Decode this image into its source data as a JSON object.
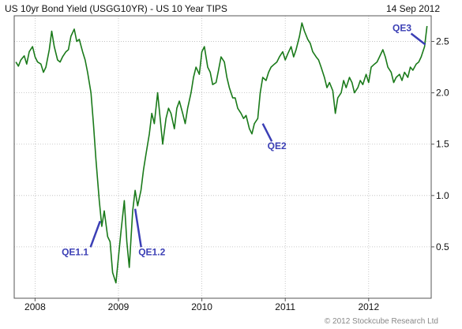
{
  "header": {
    "title": "US 10yr Bond Yield (USGG10YR) - US 10 Year TIPS",
    "date": "14 Sep 2012"
  },
  "footer": {
    "copyright": "© 2012 Stockcube Research Ltd"
  },
  "colors": {
    "line": "#1a7a1a",
    "grid": "#bbbbbb",
    "annotation": "#3b3fb5",
    "frame": "#555555"
  },
  "chart_data": {
    "type": "line",
    "title": "US 10yr Bond Yield (USGG10YR) - US 10 Year TIPS",
    "xlabel": "",
    "ylabel": "",
    "xlim": [
      2007.75,
      2012.75
    ],
    "ylim": [
      0,
      2.75
    ],
    "y_ticks": [
      0.5,
      1.0,
      1.5,
      2.0,
      2.5
    ],
    "y_tick_labels": [
      "0.5",
      "1.0",
      "1.5",
      "2.0",
      "2.5"
    ],
    "x_ticks": [
      2008,
      2009,
      2010,
      2011,
      2012
    ],
    "x_tick_labels": [
      "2008",
      "2009",
      "2010",
      "2011",
      "2012"
    ],
    "grid": true,
    "y_axis_side": "right",
    "series": [
      {
        "x": [
          2007.77,
          2007.8,
          2007.83,
          2007.87,
          2007.9,
          2007.93,
          2007.97,
          2008.0,
          2008.03,
          2008.07,
          2008.1,
          2008.13,
          2008.17,
          2008.2,
          2008.23,
          2008.27,
          2008.3,
          2008.33,
          2008.37,
          2008.4,
          2008.43,
          2008.47,
          2008.5,
          2008.53,
          2008.57,
          2008.6,
          2008.63,
          2008.67,
          2008.7,
          2008.73,
          2008.77,
          2008.8,
          2008.83,
          2008.87,
          2008.9,
          2008.93,
          2008.97,
          2009.0,
          2009.03,
          2009.07,
          2009.1,
          2009.13,
          2009.17,
          2009.2,
          2009.23,
          2009.27,
          2009.3,
          2009.33,
          2009.37,
          2009.4,
          2009.43,
          2009.47,
          2009.5,
          2009.53,
          2009.57,
          2009.6,
          2009.63,
          2009.67,
          2009.7,
          2009.73,
          2009.77,
          2009.8,
          2009.83,
          2009.87,
          2009.9,
          2009.93,
          2009.97,
          2010.0,
          2010.03,
          2010.07,
          2010.1,
          2010.13,
          2010.17,
          2010.2,
          2010.23,
          2010.27,
          2010.3,
          2010.33,
          2010.37,
          2010.4,
          2010.43,
          2010.47,
          2010.5,
          2010.53,
          2010.57,
          2010.6,
          2010.63,
          2010.67,
          2010.7,
          2010.73,
          2010.77,
          2010.8,
          2010.83,
          2010.87,
          2010.9,
          2010.93,
          2010.97,
          2011.0,
          2011.03,
          2011.07,
          2011.1,
          2011.13,
          2011.17,
          2011.2,
          2011.23,
          2011.27,
          2011.3,
          2011.33,
          2011.37,
          2011.4,
          2011.43,
          2011.47,
          2011.5,
          2011.53,
          2011.57,
          2011.6,
          2011.63,
          2011.67,
          2011.7,
          2011.73,
          2011.77,
          2011.8,
          2011.83,
          2011.87,
          2011.9,
          2011.93,
          2011.97,
          2012.0,
          2012.03,
          2012.07,
          2012.1,
          2012.13,
          2012.17,
          2012.2,
          2012.23,
          2012.27,
          2012.3,
          2012.33,
          2012.37,
          2012.4,
          2012.43,
          2012.47,
          2012.5,
          2012.53,
          2012.57,
          2012.6,
          2012.63,
          2012.67,
          2012.7
        ],
        "values": [
          2.3,
          2.26,
          2.32,
          2.36,
          2.28,
          2.4,
          2.45,
          2.35,
          2.3,
          2.28,
          2.2,
          2.25,
          2.42,
          2.6,
          2.45,
          2.32,
          2.3,
          2.35,
          2.4,
          2.42,
          2.55,
          2.62,
          2.5,
          2.52,
          2.4,
          2.32,
          2.2,
          2.0,
          1.7,
          1.35,
          0.95,
          0.7,
          0.85,
          0.6,
          0.55,
          0.25,
          0.15,
          0.4,
          0.65,
          0.95,
          0.55,
          0.3,
          0.85,
          1.05,
          0.9,
          1.05,
          1.25,
          1.4,
          1.6,
          1.8,
          1.7,
          2.0,
          1.75,
          1.5,
          1.75,
          1.85,
          1.8,
          1.65,
          1.85,
          1.92,
          1.8,
          1.7,
          1.85,
          2.0,
          2.15,
          2.25,
          2.18,
          2.4,
          2.45,
          2.25,
          2.2,
          2.08,
          2.1,
          2.22,
          2.35,
          2.3,
          2.15,
          2.05,
          1.95,
          1.95,
          1.85,
          1.8,
          1.75,
          1.78,
          1.65,
          1.6,
          1.7,
          1.75,
          2.0,
          2.15,
          2.12,
          2.2,
          2.25,
          2.28,
          2.3,
          2.35,
          2.4,
          2.32,
          2.38,
          2.45,
          2.35,
          2.42,
          2.55,
          2.68,
          2.6,
          2.52,
          2.48,
          2.4,
          2.35,
          2.32,
          2.25,
          2.15,
          2.05,
          2.1,
          2.02,
          1.8,
          1.95,
          2.0,
          2.12,
          2.05,
          2.15,
          2.1,
          2.0,
          2.05,
          2.12,
          2.08,
          2.18,
          2.1,
          2.25,
          2.28,
          2.3,
          2.35,
          2.42,
          2.35,
          2.25,
          2.2,
          2.1,
          2.15,
          2.18,
          2.12,
          2.2,
          2.15,
          2.25,
          2.22,
          2.28,
          2.3,
          2.35,
          2.45,
          2.65
        ]
      }
    ],
    "annotations": [
      {
        "label": "QE1.1",
        "x": 2008.78,
        "y": 0.75,
        "label_x": 2008.48,
        "label_y": 0.42
      },
      {
        "label": "QE1.2",
        "x": 2009.2,
        "y": 0.87,
        "label_x": 2009.4,
        "label_y": 0.42
      },
      {
        "label": "QE2",
        "x": 2010.73,
        "y": 1.7,
        "label_x": 2010.9,
        "label_y": 1.45
      },
      {
        "label": "QE3",
        "x": 2012.68,
        "y": 2.47,
        "label_x": 2012.4,
        "label_y": 2.6
      }
    ]
  }
}
